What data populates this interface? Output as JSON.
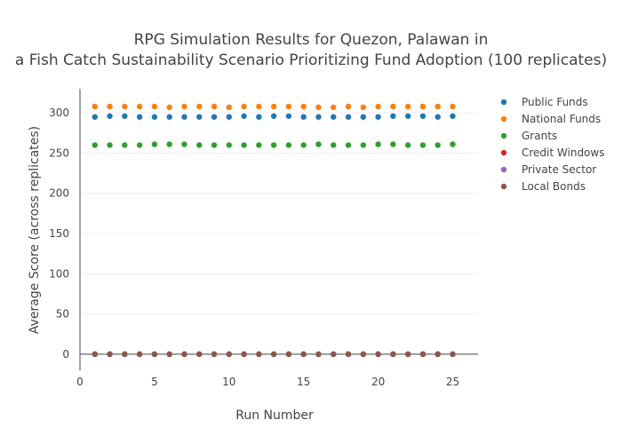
{
  "chart_data": {
    "type": "scatter",
    "title_line1": "RPG Simulation Results for Quezon, Palawan in",
    "title_line2": "a Fish Catch Sustainability Scenario Prioritizing Fund Adoption (100 replicates)",
    "xlabel": "Run Number",
    "ylabel": "Average Score (across replicates)",
    "xlim": [
      0,
      26.7
    ],
    "ylim": [
      -20,
      330
    ],
    "x_ticks": [
      0,
      5,
      10,
      15,
      20,
      25
    ],
    "y_ticks": [
      0,
      50,
      100,
      150,
      200,
      250,
      300
    ],
    "grid": true,
    "legend_position": "top-right",
    "x": [
      1,
      2,
      3,
      4,
      5,
      6,
      7,
      8,
      9,
      10,
      11,
      12,
      13,
      14,
      15,
      16,
      17,
      18,
      19,
      20,
      21,
      22,
      23,
      24,
      25
    ],
    "series": [
      {
        "name": "Public Funds",
        "color": "#1f77b4",
        "values": [
          295,
          296,
          296,
          295,
          295,
          295,
          295,
          295,
          295,
          295,
          296,
          295,
          296,
          296,
          295,
          295,
          295,
          295,
          295,
          295,
          296,
          296,
          296,
          295,
          296
        ]
      },
      {
        "name": "National Funds",
        "color": "#ff7f0e",
        "values": [
          308,
          308,
          308,
          308,
          308,
          307,
          308,
          308,
          308,
          307,
          308,
          308,
          308,
          308,
          308,
          307,
          307,
          308,
          307,
          308,
          308,
          308,
          308,
          308,
          308
        ]
      },
      {
        "name": "Grants",
        "color": "#2ca02c",
        "values": [
          260,
          260,
          260,
          260,
          261,
          261,
          261,
          260,
          260,
          260,
          260,
          260,
          260,
          260,
          260,
          261,
          260,
          260,
          260,
          261,
          261,
          260,
          260,
          260,
          261
        ]
      },
      {
        "name": "Credit Windows",
        "color": "#d62728",
        "values": [
          0,
          0,
          0,
          0,
          0,
          0,
          0,
          0,
          0,
          0,
          0,
          0,
          0,
          0,
          0,
          0,
          0,
          0,
          0,
          0,
          0,
          0,
          0,
          0,
          0
        ]
      },
      {
        "name": "Private Sector",
        "color": "#9467bd",
        "values": [
          0,
          0,
          0,
          0,
          0,
          0,
          0,
          0,
          0,
          0,
          0,
          0,
          0,
          0,
          0,
          0,
          0,
          0,
          0,
          0,
          0,
          0,
          0,
          0,
          0
        ]
      },
      {
        "name": "Local Bonds",
        "color": "#8c564b",
        "values": [
          0,
          0,
          0,
          0,
          0,
          0,
          0,
          0,
          0,
          0,
          0,
          0,
          0,
          0,
          0,
          0,
          0,
          0,
          0,
          0,
          0,
          0,
          0,
          0,
          0
        ]
      }
    ]
  }
}
